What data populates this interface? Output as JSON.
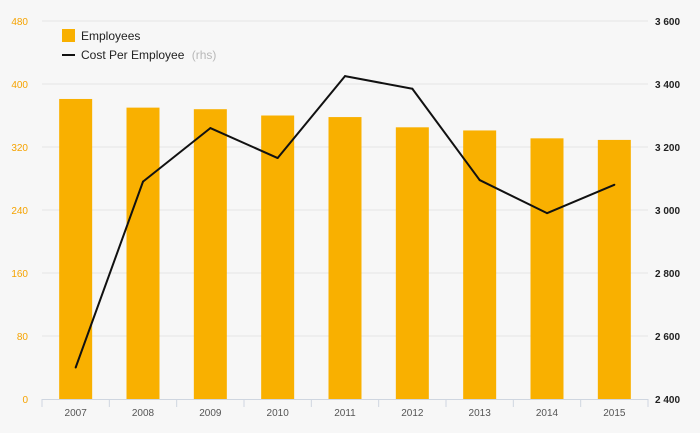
{
  "chart_data": {
    "type": "bar+line",
    "categories": [
      "2007",
      "2008",
      "2009",
      "2010",
      "2011",
      "2012",
      "2013",
      "2014",
      "2015"
    ],
    "series": [
      {
        "name": "Employees",
        "type": "bar",
        "axis": "left",
        "color": "#f9b000",
        "values": [
          381,
          370,
          368,
          360,
          358,
          345,
          341,
          331,
          329
        ]
      },
      {
        "name": "Cost Per Employee",
        "suffix": "(rhs)",
        "type": "line",
        "axis": "right",
        "color": "#111111",
        "values": [
          2500,
          3090,
          3260,
          3165,
          3425,
          3385,
          3095,
          2990,
          3080
        ]
      }
    ],
    "y_left": {
      "min": 0,
      "max": 480,
      "ticks": [
        "0",
        "80",
        "160",
        "240",
        "320",
        "400",
        "480"
      ],
      "color": "#f5a300"
    },
    "y_right": {
      "min": 2400,
      "max": 3600,
      "ticks": [
        "2 400",
        "2 600",
        "2 800",
        "3 000",
        "3 200",
        "3 400",
        "3 600"
      ]
    },
    "grid": true,
    "legend_position": "top-left"
  }
}
